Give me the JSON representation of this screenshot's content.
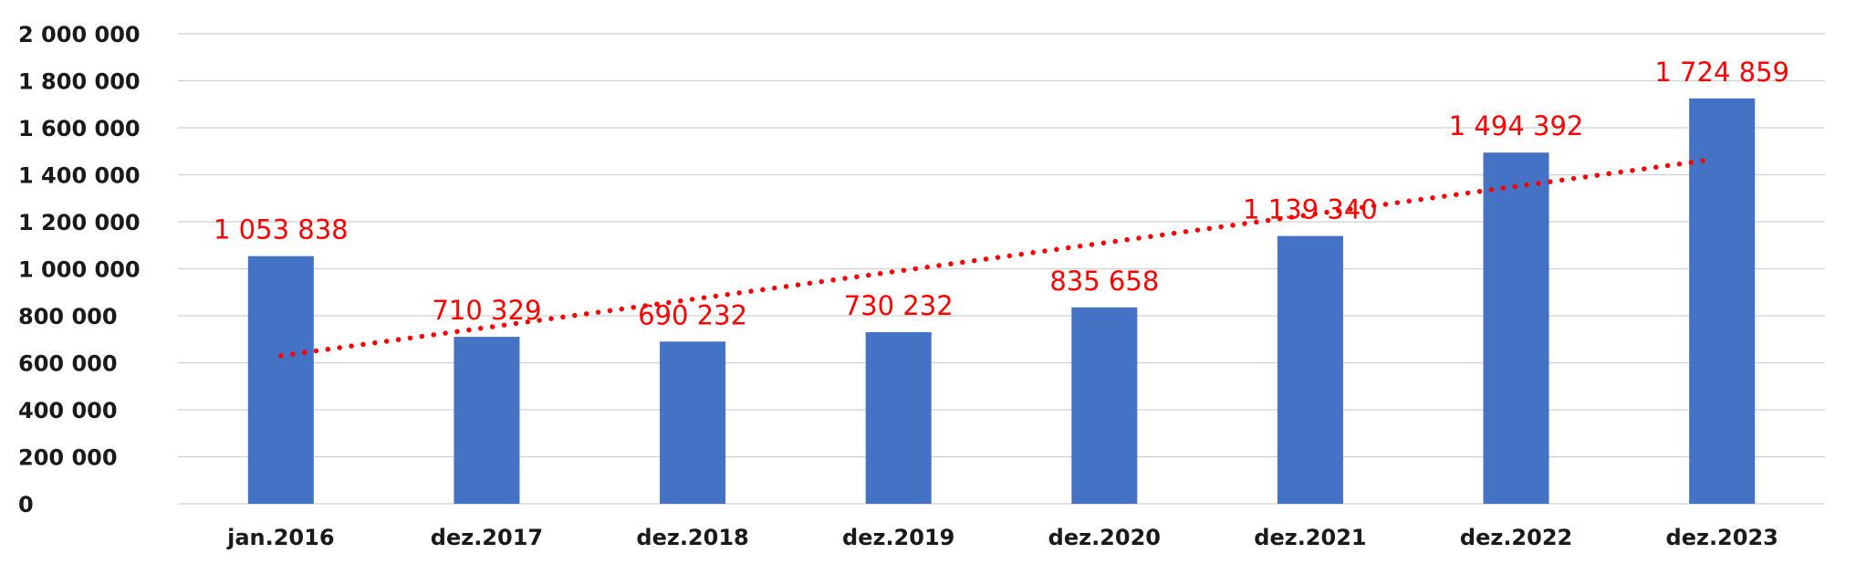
{
  "chart_data": {
    "type": "bar",
    "title": "",
    "xlabel": "",
    "ylabel": "",
    "categories": [
      "jan.2016",
      "dez.2017",
      "dez.2018",
      "dez.2019",
      "dez.2020",
      "dez.2021",
      "dez.2022",
      "dez.2023"
    ],
    "values": [
      1053838,
      710329,
      690232,
      730232,
      835658,
      1139340,
      1494392,
      1724859
    ],
    "data_labels": [
      "1 053 838",
      "710 329",
      "690 232",
      "730 232",
      "835 658",
      "1 139 340",
      "1 494 392",
      "1 724 859"
    ],
    "ylim": [
      0,
      2000000
    ],
    "yticks": [
      0,
      200000,
      400000,
      600000,
      800000,
      1000000,
      1200000,
      1400000,
      1600000,
      1800000,
      2000000
    ],
    "ytick_labels": [
      "0",
      "200 000",
      "400 000",
      "600 000",
      "800 000",
      "1 000 000",
      "1 200 000",
      "1 400 000",
      "1 600 000",
      "1 800 000",
      "2 000 000"
    ],
    "grid": true,
    "legend": "none",
    "trendline": {
      "type": "linear",
      "style": "dotted",
      "start_value": 630000,
      "end_value": 1460000
    },
    "colors": {
      "bar": "#4472c4",
      "trendline": "#ff0000",
      "data_label": "#ff0000",
      "gridline": "#d0d0d0",
      "axis_text": "#1a1a1a"
    }
  }
}
